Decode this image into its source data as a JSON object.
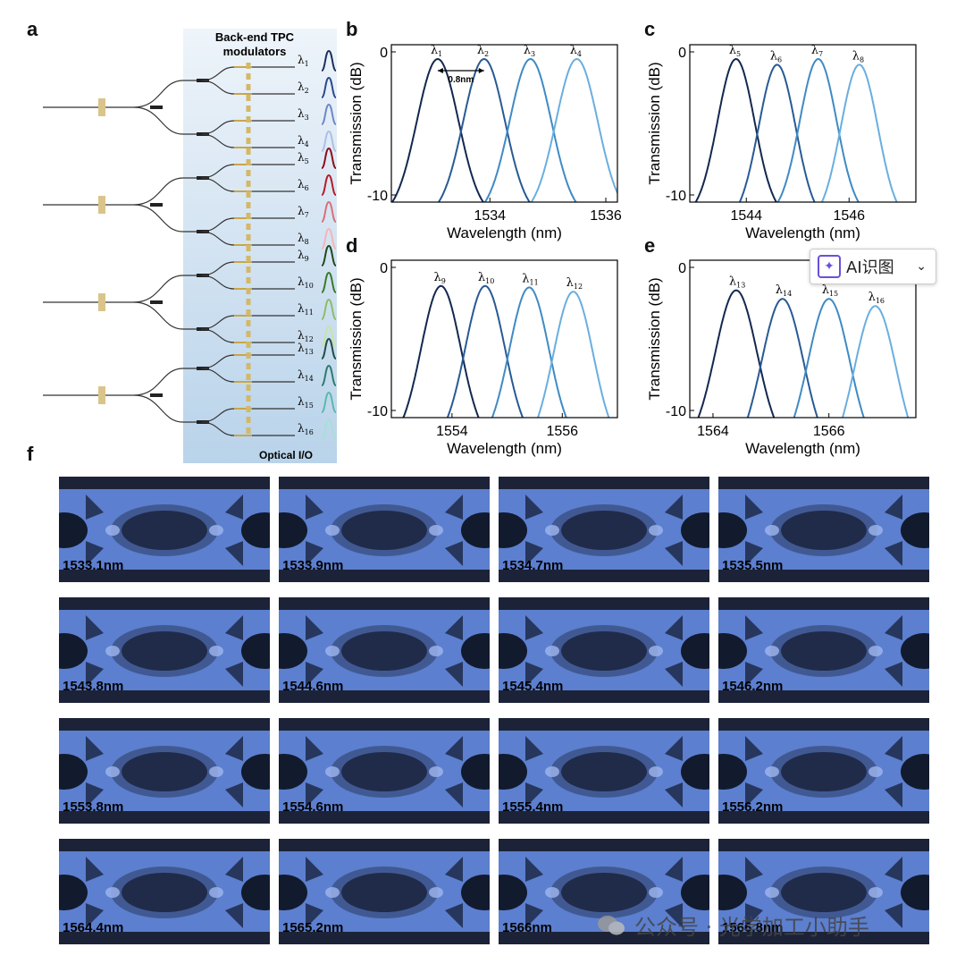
{
  "panel_labels": {
    "a": "a",
    "b": "b",
    "c": "c",
    "d": "d",
    "e": "e",
    "f": "f"
  },
  "diagram_a": {
    "header_line1": "Back-end TPC",
    "header_line2": "modulators",
    "footer": "Optical I/O",
    "lambdas": [
      "λ1",
      "λ2",
      "λ3",
      "λ4",
      "λ5",
      "λ6",
      "λ7",
      "λ8",
      "λ9",
      "λ10",
      "λ11",
      "λ12",
      "λ13",
      "λ14",
      "λ15",
      "λ16"
    ],
    "lambda_colors": [
      "#1d2f5e",
      "#2b4a8c",
      "#6d88c6",
      "#aebfe6",
      "#8b0f1b",
      "#b51c2a",
      "#d9707a",
      "#f3b6b8",
      "#1f4a1f",
      "#3a7a2a",
      "#8dbd6a",
      "#c8e3a8",
      "#1f4d44",
      "#2c7d6e",
      "#5bb9a9",
      "#a7e0d6"
    ],
    "channel_label": "0.8nm"
  },
  "chart_data": [
    {
      "id": "b",
      "type": "line",
      "xlabel": "Wavelength (nm)",
      "ylabel": "Transmission (dB)",
      "xlim": [
        1532.3,
        1536.2
      ],
      "ylim": [
        -10.5,
        0.5
      ],
      "xticks": [
        "1534",
        "1536"
      ],
      "xtick_values": [
        1534,
        1536
      ],
      "yticks": [
        "0",
        "-10"
      ],
      "ytick_values": [
        0,
        -10
      ],
      "series": [
        {
          "name": "λ1",
          "center": 1533.1,
          "peak": -0.5
        },
        {
          "name": "λ2",
          "center": 1533.9,
          "peak": -0.5
        },
        {
          "name": "λ3",
          "center": 1534.7,
          "peak": -0.5
        },
        {
          "name": "λ4",
          "center": 1535.5,
          "peak": -0.5
        }
      ],
      "annotation": "0.8nm"
    },
    {
      "id": "c",
      "type": "line",
      "xlabel": "Wavelength (nm)",
      "ylabel": "Transmission (dB)",
      "xlim": [
        1542.9,
        1547.3
      ],
      "ylim": [
        -10.5,
        0.5
      ],
      "xticks": [
        "1544",
        "1546"
      ],
      "xtick_values": [
        1544,
        1546
      ],
      "yticks": [
        "0",
        "-10"
      ],
      "ytick_values": [
        0,
        -10
      ],
      "series": [
        {
          "name": "λ5",
          "center": 1543.8,
          "peak": -0.5
        },
        {
          "name": "λ6",
          "center": 1544.6,
          "peak": -0.9
        },
        {
          "name": "λ7",
          "center": 1545.4,
          "peak": -0.5
        },
        {
          "name": "λ8",
          "center": 1546.2,
          "peak": -0.9
        }
      ]
    },
    {
      "id": "d",
      "type": "line",
      "xlabel": "Wavelength (nm)",
      "ylabel": "Transmission (dB)",
      "xlim": [
        1552.9,
        1557.0
      ],
      "ylim": [
        -10.5,
        0.5
      ],
      "xticks": [
        "1554",
        "1556"
      ],
      "xtick_values": [
        1554,
        1556
      ],
      "yticks": [
        "0",
        "-10"
      ],
      "ytick_values": [
        0,
        -10
      ],
      "series": [
        {
          "name": "λ9",
          "center": 1553.8,
          "peak": -1.3
        },
        {
          "name": "λ10",
          "center": 1554.6,
          "peak": -1.3
        },
        {
          "name": "λ11",
          "center": 1555.4,
          "peak": -1.4
        },
        {
          "name": "λ12",
          "center": 1556.2,
          "peak": -1.7
        }
      ]
    },
    {
      "id": "e",
      "type": "line",
      "xlabel": "Wavelength (nm)",
      "ylabel": "Transmission (dB)",
      "xlim": [
        1563.6,
        1567.5
      ],
      "ylim": [
        -10.5,
        0.5
      ],
      "xticks": [
        "1564",
        "1566"
      ],
      "xtick_values": [
        1564,
        1566
      ],
      "yticks": [
        "0",
        "-10"
      ],
      "ytick_values": [
        0,
        -10
      ],
      "series": [
        {
          "name": "λ13",
          "center": 1564.4,
          "peak": -1.6
        },
        {
          "name": "λ14",
          "center": 1565.2,
          "peak": -2.2
        },
        {
          "name": "λ15",
          "center": 1566.0,
          "peak": -2.2
        },
        {
          "name": "λ16",
          "center": 1566.8,
          "peak": -2.7
        }
      ]
    }
  ],
  "spectrum_colors": [
    "#13284f",
    "#285a94",
    "#3f8ac4",
    "#6aaedf"
  ],
  "eye_diagrams": [
    "1533.1nm",
    "1533.9nm",
    "1534.7nm",
    "1535.5nm",
    "1543.8nm",
    "1544.6nm",
    "1545.4nm",
    "1546.2nm",
    "1553.8nm",
    "1554.6nm",
    "1555.4nm",
    "1556.2nm",
    "1564.4nm",
    "1565.2nm",
    "1566nm",
    "1566.8nm"
  ],
  "ai_widget": {
    "label": "AI识图"
  },
  "watermark": "公众号 · 光学加工小助手"
}
